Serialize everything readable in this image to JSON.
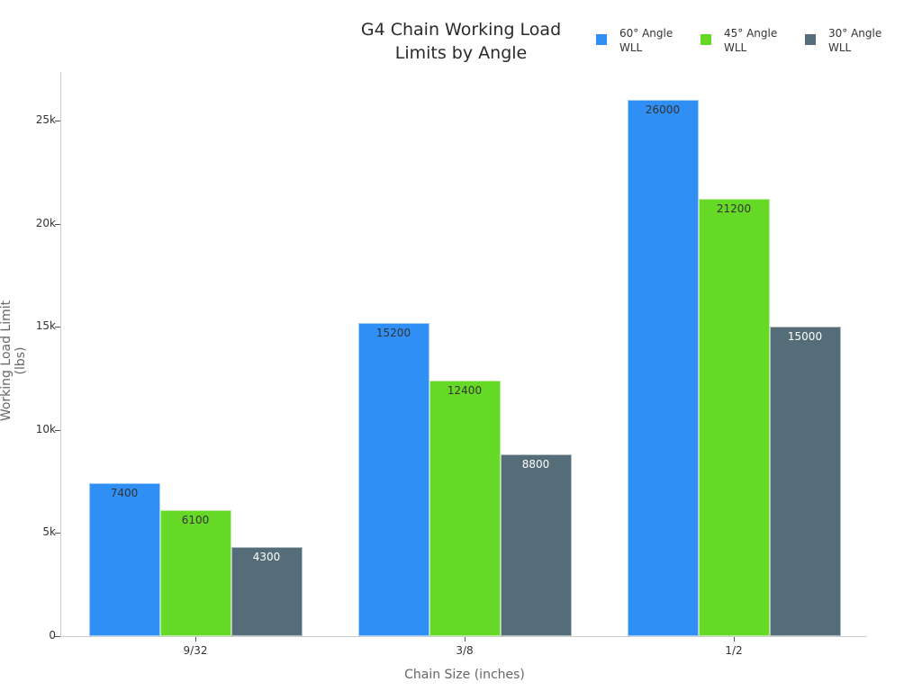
{
  "chart_data": {
    "type": "bar",
    "title": "G4 Chain Working Load Limits by Angle",
    "title_lines": [
      "G4 Chain Working Load",
      "Limits by Angle"
    ],
    "xlabel": "Chain Size (inches)",
    "ylabel": "Working Load Limit (lbs)",
    "categories": [
      "9/32",
      "3/8",
      "1/2"
    ],
    "series": [
      {
        "name": "60° Angle WLL",
        "legend_lines": [
          "60° Angle",
          "WLL"
        ],
        "color": "#2f8ff5",
        "label_color": "#333333",
        "values": [
          7400,
          15200,
          26000
        ]
      },
      {
        "name": "45° Angle WLL",
        "legend_lines": [
          "45° Angle",
          "WLL"
        ],
        "color": "#66d926",
        "label_color": "#333333",
        "values": [
          6100,
          12400,
          21200
        ]
      },
      {
        "name": "30° Angle WLL",
        "legend_lines": [
          "30° Angle",
          "WLL"
        ],
        "color": "#546d78",
        "label_color": "#ffffff",
        "values": [
          4300,
          8800,
          15000
        ]
      }
    ],
    "yticks": [
      {
        "value": 0,
        "label": "0"
      },
      {
        "value": 5000,
        "label": "5k"
      },
      {
        "value": 10000,
        "label": "10k"
      },
      {
        "value": 15000,
        "label": "15k"
      },
      {
        "value": 20000,
        "label": "20k"
      },
      {
        "value": 25000,
        "label": "25k"
      }
    ],
    "ylim": [
      0,
      27400
    ],
    "grid": false,
    "legend_position": "top-right"
  }
}
